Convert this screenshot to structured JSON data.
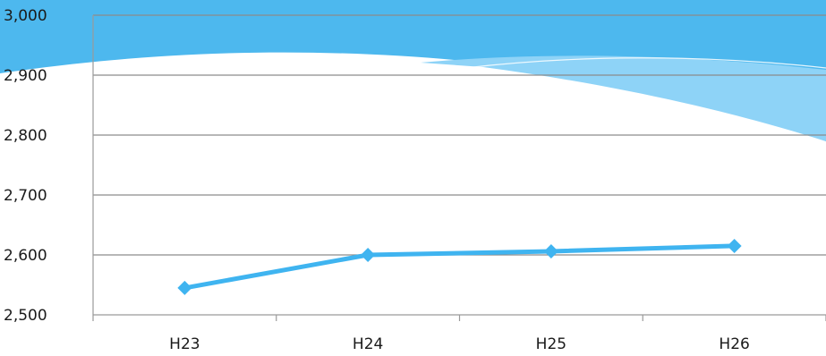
{
  "chart_data": {
    "type": "line",
    "categories": [
      "H23",
      "H24",
      "H25",
      "H26"
    ],
    "series": [
      {
        "values": [
          2545,
          2600,
          2606,
          2615
        ],
        "marker": "diamond"
      }
    ],
    "ylim": [
      2500,
      3000
    ],
    "y_ticks": [
      "2,500",
      "2,600",
      "2,700",
      "2,800",
      "2,900",
      "3,000"
    ],
    "y_tick_values": [
      2500,
      2600,
      2700,
      2800,
      2900,
      3000
    ],
    "grid": true,
    "legend": "none",
    "title": "",
    "xlabel": "",
    "ylabel": ""
  },
  "colors": {
    "series_line": "#3fb4f0",
    "banner_blue": "#4db8ee",
    "banner_light": "#8ed3f7",
    "gridline": "#8c8c8c",
    "axis": "#9a9a9a"
  }
}
